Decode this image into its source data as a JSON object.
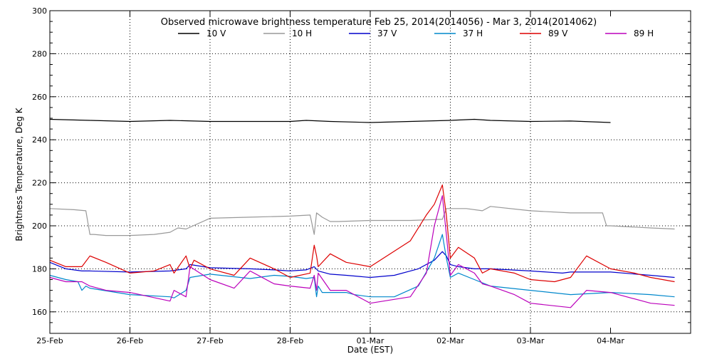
{
  "chart_data": {
    "type": "line",
    "title": "Observed microwave brightness temperature Feb 25, 2014(2014056) - Mar  3, 2014(2014062)",
    "xlabel": "Date (EST)",
    "ylabel": "Brightness Temperature, Deg K",
    "xlim": [
      0,
      8
    ],
    "ylim": [
      150,
      300
    ],
    "x_ticks": [
      {
        "value": 0,
        "label": "25-Feb"
      },
      {
        "value": 1,
        "label": "26-Feb"
      },
      {
        "value": 2,
        "label": "27-Feb"
      },
      {
        "value": 3,
        "label": "28-Feb"
      },
      {
        "value": 4,
        "label": "01-Mar"
      },
      {
        "value": 5,
        "label": "02-Mar"
      },
      {
        "value": 6,
        "label": "03-Mar"
      },
      {
        "value": 7,
        "label": "04-Mar"
      }
    ],
    "y_ticks": [
      160,
      180,
      200,
      220,
      240,
      260,
      280,
      300
    ],
    "grid": true,
    "legend_placement": "top-center",
    "series": [
      {
        "name": "10 V",
        "color": "#000000",
        "x": [
          0,
          0.5,
          1,
          1.5,
          2,
          2.5,
          3,
          3.2,
          3.5,
          4,
          4.5,
          5,
          5.3,
          5.5,
          6,
          6.5,
          7
        ],
        "y": [
          249.5,
          249,
          248.5,
          249,
          248.5,
          248.5,
          248.5,
          249,
          248.5,
          248,
          248.5,
          249,
          249.5,
          249,
          248.5,
          248.7,
          248
        ]
      },
      {
        "name": "10 H",
        "color": "#999999",
        "x": [
          0,
          0.3,
          0.45,
          0.5,
          0.55,
          0.7,
          1,
          1.3,
          1.5,
          1.55,
          1.6,
          1.7,
          2,
          2.5,
          3,
          3.25,
          3.3,
          3.33,
          3.4,
          3.5,
          3.6,
          4,
          4.5,
          4.9,
          4.95,
          5,
          5.2,
          5.4,
          5.5,
          6,
          6.5,
          6.9,
          6.95,
          7,
          7.5,
          7.8
        ],
        "y": [
          208,
          207.5,
          207,
          196,
          196,
          195.5,
          195.5,
          196,
          197,
          198,
          199,
          198.5,
          203.5,
          204,
          204.5,
          205,
          196,
          206,
          204,
          202,
          202,
          202.5,
          202.5,
          203,
          208,
          208,
          208,
          207,
          209,
          207,
          206,
          206,
          200,
          200,
          199,
          198.5
        ]
      },
      {
        "name": "37 V",
        "color": "#0000cc",
        "x": [
          0,
          0.2,
          0.4,
          0.5,
          1,
          1.5,
          1.7,
          1.75,
          2,
          2.5,
          2.8,
          3,
          3.2,
          3.3,
          3.35,
          3.5,
          3.7,
          4,
          4.3,
          4.6,
          4.8,
          4.9,
          4.95,
          5,
          5.1,
          5.3,
          5.5,
          6,
          6.4,
          6.5,
          6.7,
          7,
          7.5,
          7.8
        ],
        "y": [
          183,
          180,
          179,
          179,
          178.5,
          179,
          180,
          182,
          180.5,
          180,
          179.5,
          179,
          179.5,
          181,
          179,
          177.5,
          177,
          176,
          177,
          180,
          184,
          188,
          186,
          182,
          181,
          180,
          180,
          179,
          178,
          178.5,
          178.5,
          178.5,
          177,
          176
        ]
      },
      {
        "name": "37 H",
        "color": "#0088cc",
        "x": [
          0,
          0.2,
          0.35,
          0.4,
          0.45,
          0.5,
          1,
          1.5,
          1.55,
          1.7,
          1.75,
          2,
          2.5,
          2.8,
          3,
          3.2,
          3.3,
          3.33,
          3.35,
          3.4,
          3.5,
          3.7,
          3.8,
          4,
          4.3,
          4.6,
          4.8,
          4.9,
          4.95,
          5,
          5.1,
          5.3,
          5.5,
          6,
          6.5,
          7,
          7.5,
          7.8
        ],
        "y": [
          177,
          175,
          174,
          170,
          172,
          171,
          168,
          167,
          166.5,
          170,
          176,
          177.5,
          175.5,
          177,
          176.5,
          175.5,
          176,
          167,
          172,
          169,
          169,
          169,
          168,
          167,
          167,
          172,
          185,
          196,
          185,
          176,
          178,
          175,
          172,
          170,
          168,
          169,
          168,
          167
        ]
      },
      {
        "name": "89 V",
        "color": "#dd0000",
        "x": [
          0,
          0.2,
          0.4,
          0.5,
          0.7,
          1,
          1.3,
          1.5,
          1.55,
          1.7,
          1.75,
          1.8,
          2,
          2.3,
          2.5,
          2.8,
          3,
          3.25,
          3.3,
          3.33,
          3.35,
          3.5,
          3.7,
          4,
          4.5,
          4.7,
          4.8,
          4.9,
          4.95,
          5,
          5.1,
          5.3,
          5.4,
          5.5,
          5.8,
          6,
          6.3,
          6.5,
          6.7,
          7,
          7.3,
          7.5,
          7.8
        ],
        "y": [
          184,
          181,
          181,
          186,
          183,
          178,
          179,
          182,
          178,
          186,
          180,
          184,
          180,
          177,
          185,
          180,
          176,
          178,
          191,
          186,
          181,
          187,
          183,
          181,
          193,
          205,
          210,
          219,
          205,
          185,
          190,
          185,
          178,
          180,
          178,
          175,
          174,
          176,
          186,
          180,
          178,
          176,
          174
        ]
      },
      {
        "name": "89 H",
        "color": "#bb00bb",
        "x": [
          0,
          0.2,
          0.4,
          0.5,
          0.7,
          1,
          1.5,
          1.55,
          1.7,
          1.75,
          2,
          2.3,
          2.5,
          2.8,
          3,
          3.25,
          3.3,
          3.33,
          3.35,
          3.5,
          3.7,
          4,
          4.5,
          4.7,
          4.8,
          4.9,
          4.95,
          5,
          5.1,
          5.3,
          5.4,
          5.5,
          5.8,
          6,
          6.5,
          6.7,
          7,
          7.5,
          7.8
        ],
        "y": [
          176,
          174,
          174,
          172,
          170,
          169,
          165,
          170,
          167,
          181,
          175,
          171,
          179,
          173,
          172,
          171,
          177,
          170,
          178,
          170,
          170,
          164,
          167,
          178,
          200,
          214,
          196,
          177,
          182,
          178,
          173,
          172,
          168,
          164,
          162,
          170,
          169,
          164,
          163
        ]
      }
    ]
  }
}
